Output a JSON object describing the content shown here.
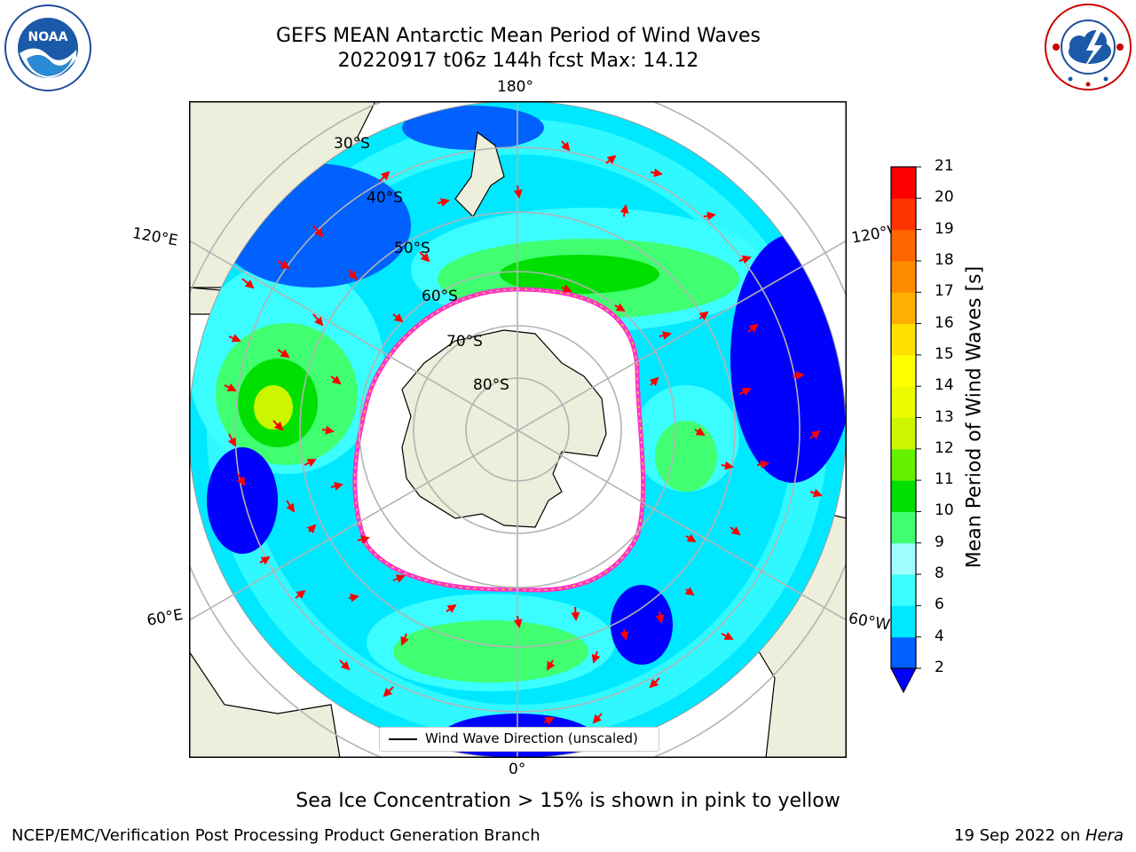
{
  "title": {
    "line1": "GEFS MEAN Antarctic Mean Period of Wind Waves",
    "line2": "20220917 t06z 144h fcst   Max: 14.12"
  },
  "map": {
    "projection": "south-polar-stereographic",
    "longitude_labels": [
      "180°",
      "120°E",
      "120°W",
      "60°E",
      "60°W",
      "0°"
    ],
    "latitude_labels": [
      "30°S",
      "40°S",
      "50°S",
      "60°S",
      "70°S",
      "80°S"
    ],
    "land_color": "#eeeedc",
    "arrow_color": "#ff0000",
    "sea_ice_colors": [
      "#ff33cc",
      "#ffcc33"
    ]
  },
  "legend": {
    "label": "Wind Wave Direction (unscaled)"
  },
  "colorbar": {
    "label": "Mean Period of Wind Waves [s]",
    "ticks": [
      "2",
      "4",
      "6",
      "8",
      "9",
      "10",
      "11",
      "12",
      "13",
      "14",
      "15",
      "16",
      "17",
      "18",
      "19",
      "20",
      "21"
    ],
    "colors": [
      "#0061ff",
      "#00e8ff",
      "#3bfcff",
      "#9fffff",
      "#40ff70",
      "#00e000",
      "#66f000",
      "#ccf600",
      "#ecfc00",
      "#ffff00",
      "#ffe100",
      "#ffb000",
      "#ff8c00",
      "#ff6600",
      "#ff3300",
      "#ff0000"
    ],
    "extend_color": "#0000ff"
  },
  "logos": {
    "noaa_text": "NOAA",
    "nws_text": "NATIONAL WEATHER SERVICE"
  },
  "notes": {
    "sea_ice": "Sea Ice Concentration > 15% is shown in pink to yellow",
    "credit": "NCEP/EMC/Verification Post Processing Product Generation Branch",
    "date": "19 Sep 2022 on ",
    "machine": "Hera"
  }
}
